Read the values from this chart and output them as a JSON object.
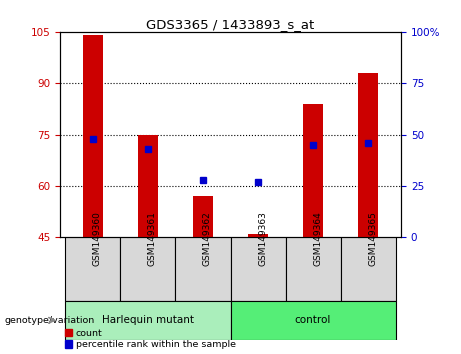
{
  "title": "GDS3365 / 1433893_s_at",
  "categories": [
    "GSM149360",
    "GSM149361",
    "GSM149362",
    "GSM149363",
    "GSM149364",
    "GSM149365"
  ],
  "red_values": [
    104,
    75,
    57,
    46,
    84,
    93
  ],
  "blue_values_pct": [
    48,
    43,
    28,
    27,
    45,
    46
  ],
  "ylim_left": [
    45,
    105
  ],
  "ylim_right": [
    0,
    100
  ],
  "yticks_left": [
    45,
    60,
    75,
    90,
    105
  ],
  "yticks_right": [
    0,
    25,
    50,
    75,
    100
  ],
  "ytick_labels_right": [
    "0",
    "25",
    "50",
    "75",
    "100%"
  ],
  "bar_color": "#cc0000",
  "dot_color": "#0000cc",
  "bar_bottom": 45,
  "group1_label": "Harlequin mutant",
  "group2_label": "control",
  "group1_color": "#aaeebb",
  "group2_color": "#55ee77",
  "genotype_label": "genotype/variation",
  "legend_count": "count",
  "legend_pct": "percentile rank within the sample",
  "left_tick_color": "#cc0000",
  "right_tick_color": "#0000cc",
  "bar_width": 0.35
}
